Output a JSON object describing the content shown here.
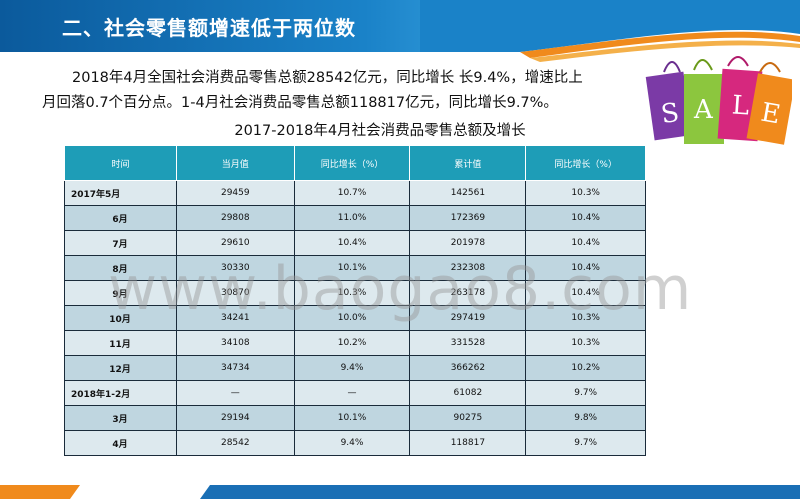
{
  "slide": {
    "title": "二、社会零售额增速低于两位数"
  },
  "paragraph": {
    "line1": "2018年4月全国社会消费品零售总额28542亿元，同比增长 长9.4%，增速比上",
    "line2": "月回落0.7个百分点。1-4月社会消费品零售总额118817亿元，同比增长9.7%。"
  },
  "table": {
    "caption": "2017-2018年4月社会消费品零售总额及增长",
    "headers": [
      "时间",
      "当月值",
      "同比增长（%）",
      "累计值",
      "同比增长（%）"
    ],
    "rows": [
      {
        "label": "2017年5月",
        "month": "29459",
        "yoy": "10.7%",
        "cum": "142561",
        "cum_yoy": "10.3%"
      },
      {
        "label": "6月",
        "month": "29808",
        "yoy": "11.0%",
        "cum": "172369",
        "cum_yoy": "10.4%"
      },
      {
        "label": "7月",
        "month": "29610",
        "yoy": "10.4%",
        "cum": "201978",
        "cum_yoy": "10.4%"
      },
      {
        "label": "8月",
        "month": "30330",
        "yoy": "10.1%",
        "cum": "232308",
        "cum_yoy": "10.4%"
      },
      {
        "label": "9月",
        "month": "30870",
        "yoy": "10.3%",
        "cum": "263178",
        "cum_yoy": "10.4%"
      },
      {
        "label": "10月",
        "month": "34241",
        "yoy": "10.0%",
        "cum": "297419",
        "cum_yoy": "10.3%"
      },
      {
        "label": "11月",
        "month": "34108",
        "yoy": "10.2%",
        "cum": "331528",
        "cum_yoy": "10.3%"
      },
      {
        "label": "12月",
        "month": "34734",
        "yoy": "9.4%",
        "cum": "366262",
        "cum_yoy": "10.2%"
      },
      {
        "label": "2018年1-2月",
        "month": "—",
        "yoy": "—",
        "cum": "61082",
        "cum_yoy": "9.7%"
      },
      {
        "label": "3月",
        "month": "29194",
        "yoy": "10.1%",
        "cum": "90275",
        "cum_yoy": "9.8%"
      },
      {
        "label": "4月",
        "month": "28542",
        "yoy": "9.4%",
        "cum": "118817",
        "cum_yoy": "9.7%"
      }
    ]
  },
  "sale_image": {
    "letters": [
      "S",
      "A",
      "L",
      "E"
    ]
  },
  "watermark": "www.baogao8.com",
  "colors": {
    "title_bar": "#0b5a9c",
    "header_cell": "#1e9db7",
    "row_light": "#dde9ee",
    "row_dark": "#bfd6e0",
    "footer_orange": "#f08a1c",
    "footer_blue": "#1a6fb5"
  }
}
